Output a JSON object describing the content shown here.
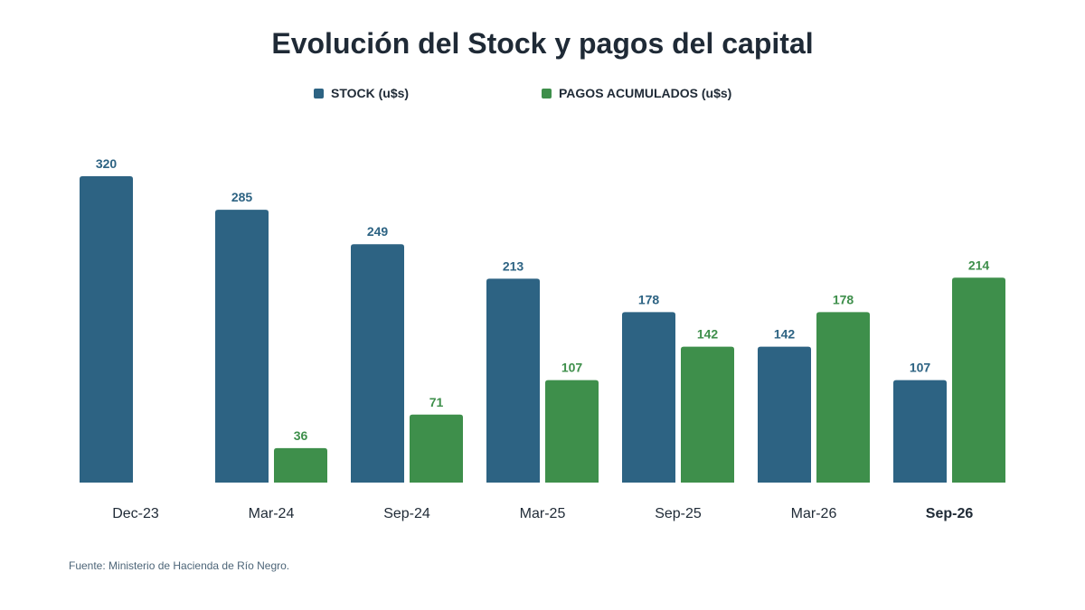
{
  "colors": {
    "stock": "#2d6383",
    "pagos": "#3e8f4b",
    "title": "#1f2a36",
    "axis_text": "#1f2a36",
    "source": "#4d6578"
  },
  "chart_data": {
    "type": "bar",
    "title": "Evolución del Stock y pagos del capital",
    "categories": [
      "Dec-23",
      "Mar-24",
      "Sep-24",
      "Mar-25",
      "Sep-25",
      "Mar-26",
      "Sep-26"
    ],
    "highlighted_category": "Sep-26",
    "series": [
      {
        "name": "STOCK (u$s)",
        "values": [
          320,
          285,
          249,
          213,
          178,
          142,
          107
        ]
      },
      {
        "name": "PAGOS ACUMULADOS (u$s)",
        "values": [
          null,
          36,
          71,
          107,
          142,
          178,
          214
        ]
      }
    ],
    "ylim": [
      0,
      340
    ],
    "grid": false,
    "legend_position": "top"
  },
  "footer": {
    "source": "Fuente: Ministerio de Hacienda de Río Negro."
  }
}
